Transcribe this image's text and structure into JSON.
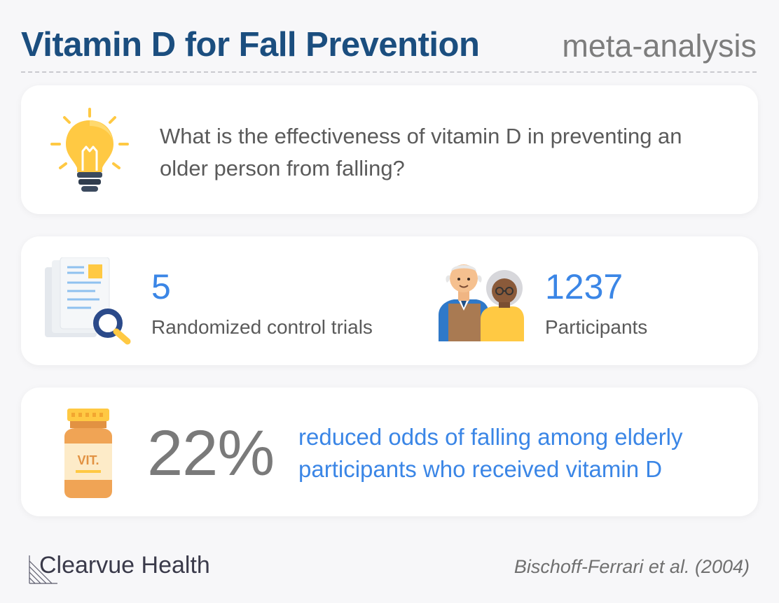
{
  "header": {
    "title": "Vitamin D for Fall Prevention",
    "subtitle": "meta-analysis"
  },
  "question": {
    "icon": "lightbulb-icon",
    "text": "What is the effectiveness of vitamin D in preventing an older person from falling?"
  },
  "stats": {
    "trials": {
      "icon": "document-search-icon",
      "value": "5",
      "label": "Randomized control trials"
    },
    "participants": {
      "icon": "elderly-couple-icon",
      "value": "1237",
      "label": "Participants"
    }
  },
  "result": {
    "icon": "vitamin-bottle-icon",
    "bottle_label": "VIT.",
    "percent": "22%",
    "text": "reduced odds of falling among elderly participants who received vitamin D"
  },
  "footer": {
    "brand": "Clearvue Health",
    "citation": "Bischoff-Ferrari et al. (2004)"
  },
  "colors": {
    "title": "#1b4e7f",
    "accent": "#3b86e6",
    "bulb": "#ffc943",
    "bottle": "#f0a455"
  }
}
